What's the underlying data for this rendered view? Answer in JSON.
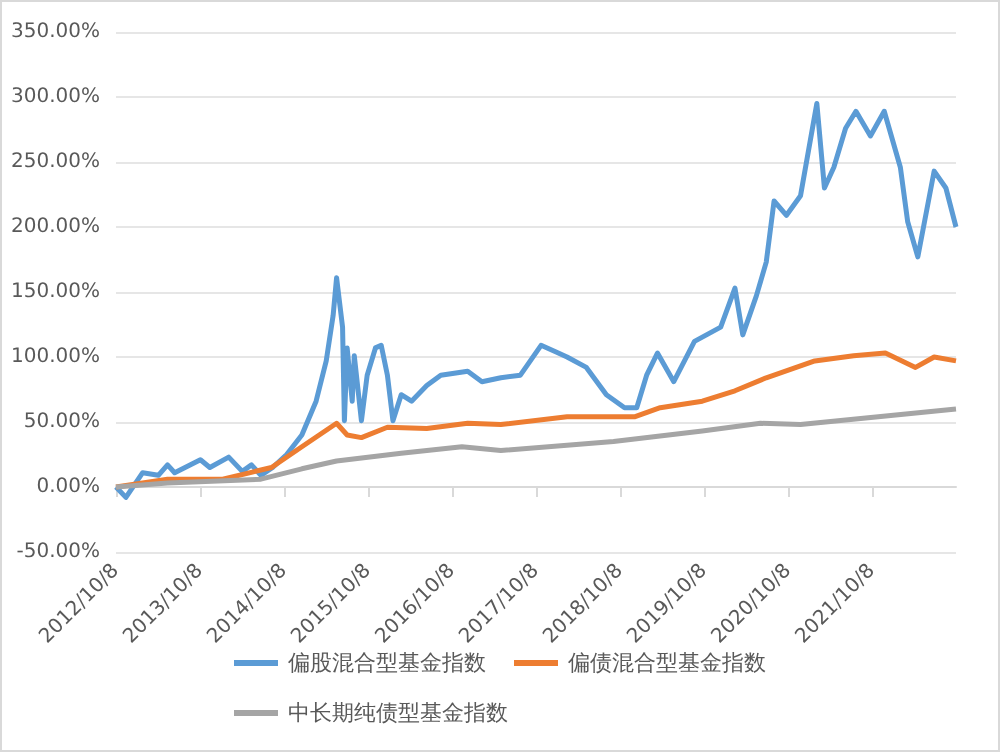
{
  "chart_data": {
    "type": "line",
    "xlim": [
      "2012-10-08",
      "2022-10-08"
    ],
    "xticks": [
      {
        "value": "2012-10-08",
        "label": "2012/10/8"
      },
      {
        "value": "2013-10-08",
        "label": "2013/10/8"
      },
      {
        "value": "2014-10-08",
        "label": "2014/10/8"
      },
      {
        "value": "2015-10-08",
        "label": "2015/10/8"
      },
      {
        "value": "2016-10-08",
        "label": "2016/10/8"
      },
      {
        "value": "2017-10-08",
        "label": "2017/10/8"
      },
      {
        "value": "2018-10-08",
        "label": "2018/10/8"
      },
      {
        "value": "2019-10-08",
        "label": "2019/10/8"
      },
      {
        "value": "2020-10-08",
        "label": "2020/10/8"
      },
      {
        "value": "2021-10-08",
        "label": "2021/10/8"
      }
    ],
    "ylim": [
      -50,
      350
    ],
    "yticks": [
      {
        "value": -50,
        "label": "-50.00%"
      },
      {
        "value": 0,
        "label": "0.00%"
      },
      {
        "value": 50,
        "label": "50.00%"
      },
      {
        "value": 100,
        "label": "100.00%"
      },
      {
        "value": 150,
        "label": "150.00%"
      },
      {
        "value": 200,
        "label": "200.00%"
      },
      {
        "value": 250,
        "label": "250.00%"
      },
      {
        "value": 300,
        "label": "300.00%"
      },
      {
        "value": 350,
        "label": "350.00%"
      }
    ],
    "grid": "y",
    "legend": "bottom",
    "marker": "none",
    "line_style": "solid",
    "series": [
      {
        "name": "偏股混合型基金指数",
        "color": "#5b9bd5",
        "x": [
          "2012-10-08",
          "2012-11-20",
          "2013-02-01",
          "2013-04-10",
          "2013-05-20",
          "2013-06-20",
          "2013-10-10",
          "2013-11-20",
          "2014-02-10",
          "2014-04-10",
          "2014-05-20",
          "2014-06-30",
          "2014-08-20",
          "2014-10-20",
          "2014-12-25",
          "2015-02-25",
          "2015-04-10",
          "2015-05-10",
          "2015-05-25",
          "2015-06-20",
          "2015-06-28",
          "2015-07-10",
          "2015-08-01",
          "2015-08-10",
          "2015-09-10",
          "2015-10-05",
          "2015-11-10",
          "2015-12-05",
          "2016-01-01",
          "2016-01-25",
          "2016-03-01",
          "2016-04-15",
          "2016-06-20",
          "2016-08-20",
          "2016-12-15",
          "2017-02-15",
          "2017-05-08",
          "2017-08-01",
          "2017-10-30",
          "2018-01-01",
          "2018-02-20",
          "2018-05-15",
          "2018-08-10",
          "2018-10-28",
          "2018-12-20",
          "2019-02-01",
          "2019-03-20",
          "2019-05-30",
          "2019-08-28",
          "2019-12-20",
          "2020-02-20",
          "2020-03-25",
          "2020-05-23",
          "2020-07-05",
          "2020-08-08",
          "2020-10-01",
          "2020-12-01",
          "2021-01-15",
          "2021-02-10",
          "2021-03-15",
          "2021-04-25",
          "2021-06-15",
          "2021-07-30",
          "2021-10-01",
          "2021-11-30",
          "2022-02-08",
          "2022-03-12",
          "2022-04-25",
          "2022-07-05",
          "2022-08-25",
          "2022-10-08"
        ],
        "values": [
          0,
          -8,
          11,
          9,
          17,
          11,
          21,
          15,
          23,
          12,
          17,
          9,
          15,
          25,
          40,
          66,
          97,
          132,
          161,
          123,
          51,
          107,
          66,
          101,
          51,
          86,
          107,
          109,
          86,
          51,
          71,
          66,
          78,
          86,
          89,
          81,
          84,
          86,
          109,
          104,
          100,
          92,
          71,
          61,
          61,
          86,
          103,
          81,
          112,
          123,
          153,
          117,
          147,
          173,
          220,
          209,
          224,
          269,
          295,
          230,
          246,
          276,
          289,
          270,
          289,
          246,
          204,
          177,
          243,
          230,
          200
        ]
      },
      {
        "name": "偏债混合型基金指数",
        "color": "#ed7d31",
        "x": [
          "2012-10-08",
          "2013-05-20",
          "2014-01-15",
          "2014-08-15",
          "2014-12-25",
          "2015-05-25",
          "2015-07-10",
          "2015-09-10",
          "2016-01-01",
          "2016-06-20",
          "2016-12-15",
          "2017-05-08",
          "2018-02-20",
          "2018-12-10",
          "2019-04-01",
          "2019-10-01",
          "2020-02-20",
          "2020-07-05",
          "2021-02-01",
          "2021-07-20",
          "2021-12-05",
          "2022-04-15",
          "2022-07-05",
          "2022-10-08"
        ],
        "values": [
          0,
          6,
          6,
          15,
          31,
          49,
          40,
          38,
          46,
          45,
          49,
          48,
          54,
          54,
          61,
          66,
          74,
          84,
          97,
          101,
          103,
          92,
          100,
          97
        ]
      },
      {
        "name": "中长期纯债型基金指数",
        "color": "#a5a5a5",
        "x": [
          "2012-10-08",
          "2013-05-20",
          "2014-06-30",
          "2014-12-25",
          "2015-05-25",
          "2016-03-01",
          "2016-11-20",
          "2017-05-08",
          "2018-09-10",
          "2019-10-01",
          "2020-06-10",
          "2020-12-01",
          "2022-10-08"
        ],
        "values": [
          0,
          3,
          6,
          14,
          20,
          26,
          31,
          28,
          35,
          43,
          49,
          48,
          60
        ]
      }
    ]
  }
}
